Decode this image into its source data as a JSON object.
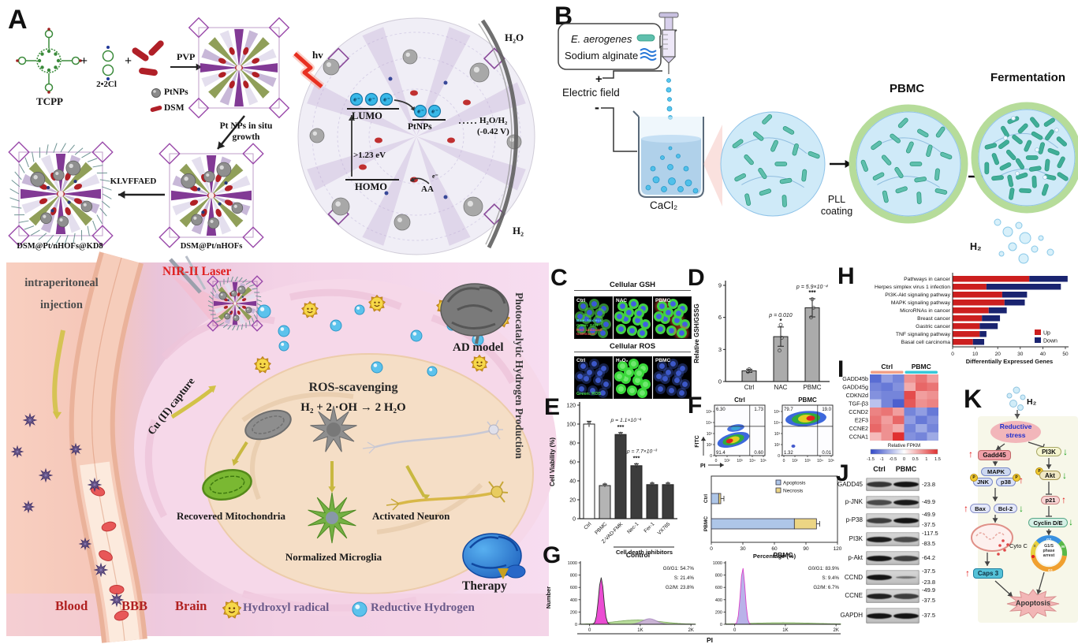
{
  "panelA": {
    "label": "A",
    "synthesis": {
      "tcpp": "TCPP",
      "plus": "+",
      "ligand": "2•2Cl",
      "pvp": "PVP",
      "legend_ptnps": "PtNPs",
      "legend_dsm": "DSM",
      "step_growth": "Pt NPs in situ growth",
      "step_peptide": "KLVFFAED",
      "product_mid": "DSM@Pt/nHOFs",
      "product_final": "DSM@Pt/nHOFs@KD8"
    },
    "photocatalysis": {
      "hv": "hv",
      "lumo": "LUMO",
      "homo": "HOMO",
      "bandgap": ">1.23 eV",
      "ptnps": "PtNPs",
      "aa": "AA",
      "electron": "e⁻",
      "h2o": "H₂O",
      "redox_couple": "H₂O/H₂",
      "redox_potential": "(-0.42 V)",
      "h2": "H₂"
    },
    "invivo": {
      "injection_line1": "intraperitoneal",
      "injection_line2": "injection",
      "laser": "NIR-II Laser",
      "cu_capture": "Cu (II) capture",
      "ros_title": "ROS-scavenging",
      "ros_equation": "H₂ + 2 ·OH → 2 H₂O",
      "ad_model": "AD model",
      "mitochondria": "Recovered Mitochondria",
      "microglia": "Normalized Microglia",
      "neuron": "Activated Neuron",
      "vertical_label": "Photocatalytic Hydrogen Production",
      "therapy": "Therapy",
      "blood": "Blood",
      "bbb": "BBB",
      "brain": "Brain",
      "legend_radical": "Hydroxyl radical",
      "legend_hydrogen": "Reductive Hydrogen"
    }
  },
  "panelB": {
    "label": "B",
    "bacteria": "E. aerogenes",
    "alginate": "Sodium alginate",
    "electric_field": "Electric field",
    "plus": "+",
    "minus": "-",
    "cacl2": "CaCl₂",
    "pll_coating": "PLL coating",
    "pbmc": "PBMC",
    "fermentation": "Fermentation",
    "h2": "H₂"
  },
  "panelC": {
    "label": "C",
    "gsh_title": "Cellular GSH",
    "gsh_columns": [
      "Ctrl",
      "NAC",
      "PBMC"
    ],
    "gsh_notes": [
      "Blue: Nucleus",
      "Green: GSH",
      "Red: unbound GSHtracer"
    ],
    "ros_title": "Cellular ROS",
    "ros_columns": [
      "Ctrl",
      "H₂O₂",
      "PBMC"
    ],
    "ros_notes": [
      "Green: ROS"
    ]
  },
  "panelD": {
    "label": "D"
  },
  "panelE": {
    "label": "E"
  },
  "panelF": {
    "label": "F"
  },
  "panelG": {
    "label": "G"
  },
  "panelH": {
    "label": "H"
  },
  "panelI": {
    "label": "I"
  },
  "panelJ": {
    "label": "J",
    "lanes": [
      "Ctrl",
      "PBMC"
    ],
    "rows": [
      {
        "protein": "GADD45",
        "mw": [
          "23.8"
        ],
        "intensity": [
          0.75,
          1.0
        ]
      },
      {
        "protein": "p-JNK",
        "mw": [
          "49.9"
        ],
        "intensity": [
          0.6,
          0.95
        ]
      },
      {
        "protein": "p-P38",
        "mw": [
          "49.9",
          "37.5"
        ],
        "intensity": [
          0.7,
          1.0
        ]
      },
      {
        "protein": "PI3K",
        "mw": [
          "117.5",
          "83.5"
        ],
        "intensity": [
          0.95,
          0.6
        ]
      },
      {
        "protein": "p-Akt",
        "mw": [
          "64.2"
        ],
        "intensity": [
          1.0,
          0.7
        ]
      },
      {
        "protein": "CCND",
        "mw": [
          "37.5",
          "23.8"
        ],
        "intensity": [
          1.0,
          0.35
        ]
      },
      {
        "protein": "CCNE",
        "mw": [
          "49.9",
          "37.5"
        ],
        "intensity": [
          0.9,
          0.7
        ]
      },
      {
        "protein": "GAPDH",
        "mw": [
          "37.5"
        ],
        "intensity": [
          1.0,
          1.0
        ]
      }
    ]
  },
  "panelK": {
    "label": "K",
    "h2": "H₂",
    "stress": "Reductive stress",
    "gadd45": "Gadd45",
    "mapk": "MAPK",
    "jnk": "JNK",
    "p38": "p38",
    "phospho": "P",
    "bax": "Bax",
    "bcl2": "Bcl-2",
    "cytoc": "Cyto C",
    "casp3": "Caps 3",
    "pi3k": "PI3K",
    "akt": "Akt",
    "p21": "p21",
    "cyclin": "Cyclin D/E",
    "arrest": [
      "G1/S",
      "phase",
      "arrest"
    ],
    "ring": [
      "G2",
      "M",
      "G1",
      "S"
    ],
    "apoptosis": "Apoptosis",
    "up": "↑",
    "down": "↓"
  },
  "chart_data": [
    {
      "id": "D",
      "type": "bar",
      "categories": [
        "Ctrl",
        "NAC",
        "PBMC"
      ],
      "values": [
        1.0,
        4.2,
        6.9
      ],
      "errors": [
        0.15,
        0.9,
        0.85
      ],
      "points": [
        [
          0.9,
          1.0,
          1.15
        ],
        [
          2.9,
          4.1,
          5.3
        ],
        [
          6.0,
          6.9,
          7.7
        ]
      ],
      "ylabel": "Relative GSH/GSSG",
      "ylim": [
        0,
        9
      ],
      "yticks": [
        0,
        3,
        6,
        9
      ],
      "annotations": [
        {
          "index": 1,
          "text": "p = 0.010",
          "stars": "*"
        },
        {
          "index": 2,
          "text": "p = 5.9×10⁻⁴",
          "stars": "***"
        }
      ]
    },
    {
      "id": "E",
      "type": "bar",
      "categories": [
        "Ctrl",
        "PBMC",
        "Z-VAD-FMK",
        "Nec-1",
        "Fer-1",
        "VX765"
      ],
      "values": [
        100,
        35,
        89,
        56,
        36,
        36
      ],
      "errors": [
        3,
        1.5,
        2,
        2,
        1.5,
        1.5
      ],
      "bar_colors": [
        "#ffffff",
        "#b4b4b4",
        "#3c3c3c",
        "#3c3c3c",
        "#3c3c3c",
        "#3c3c3c"
      ],
      "ylabel": "Cell Viability (%)",
      "ylim": [
        0,
        120
      ],
      "yticks": [
        0,
        20,
        40,
        60,
        80,
        100,
        120
      ],
      "xlabel_group": "Cell death inhibitors",
      "annotations": [
        {
          "index": 2,
          "text": "p = 1.1×10⁻⁴",
          "stars": "***"
        },
        {
          "index": 3,
          "text": "p = 7.7×10⁻³",
          "stars": "***"
        }
      ]
    },
    {
      "id": "F_flow",
      "type": "flow-density",
      "xlabel": "PI",
      "ylabel": "FITC",
      "ticks": [
        "0",
        "10²",
        "10³",
        "10⁴",
        "10⁵"
      ],
      "plots": [
        {
          "title": "Ctrl",
          "ul": "6.30",
          "ur": "1.73",
          "ll": "91.4",
          "lr": "0.60"
        },
        {
          "title": "PBMC",
          "ul": "79.7",
          "ur": "19.0",
          "ll": "1.32",
          "lr": "0.01"
        }
      ]
    },
    {
      "id": "F_bar",
      "type": "stacked-bar-h",
      "categories": [
        "Ctrl",
        "PBMC"
      ],
      "series": [
        {
          "name": "Apoptosis",
          "color": "#aec6e8",
          "values": [
            7,
            79
          ]
        },
        {
          "name": "Necrosis",
          "color": "#ecd584",
          "values": [
            2,
            21
          ]
        }
      ],
      "xlabel": "Percentage (%)",
      "xlim": [
        0,
        120
      ],
      "xticks": [
        0,
        30,
        60,
        90,
        120
      ]
    },
    {
      "id": "G",
      "type": "histogram",
      "xlabel": "PI",
      "ylabel": "Number",
      "yticks": [
        0,
        200,
        400,
        600,
        800,
        1000
      ],
      "xticks": [
        "0",
        "1K",
        "2K"
      ],
      "plots": [
        {
          "title": "Control",
          "stats": [
            "G0/G1: 54.7%",
            "S: 21.4%",
            "G2/M: 23.8%"
          ]
        },
        {
          "title": "PBMC",
          "stats": [
            "G0/G1: 83.9%",
            "S: 9.4%",
            "G2/M: 6.7%"
          ]
        }
      ]
    },
    {
      "id": "H",
      "type": "stacked-bar-h",
      "categories": [
        "Pathways in cancer",
        "Herpes simplex virus 1 infection",
        "PI3K-Akt signaling pathway",
        "MAPK signaling pathway",
        "MicroRNAs in cancer",
        "Breast cancer",
        "Gastric cancer",
        "TNF signaling pathway",
        "Basal cell carcinoma"
      ],
      "series": [
        {
          "name": "Up",
          "color": "#cc1f1f",
          "values": [
            34,
            15,
            22,
            23,
            16,
            13,
            12,
            12,
            9
          ]
        },
        {
          "name": "Down",
          "color": "#1a2470",
          "values": [
            17,
            33,
            11,
            9,
            8,
            8,
            8,
            3,
            5
          ]
        }
      ],
      "xlabel": "Differentially Expressed Genes",
      "xlim": [
        0,
        50
      ],
      "xticks": [
        0,
        10,
        20,
        30,
        40,
        50
      ]
    },
    {
      "id": "I",
      "type": "heatmap",
      "col_groups": [
        {
          "name": "Ctrl",
          "color": "#f2a088",
          "cols": 3
        },
        {
          "name": "PBMC",
          "color": "#38c8d8",
          "cols": 3
        }
      ],
      "rows": [
        "GADD45b",
        "GADD45g",
        "CDKN2d",
        "TGF-β3",
        "CCND2",
        "E2F3",
        "CCNE2",
        "CCNA1"
      ],
      "values": [
        [
          -1.2,
          -0.8,
          -1.0,
          0.8,
          1.0,
          0.7
        ],
        [
          -1.0,
          -1.1,
          -0.9,
          0.6,
          1.1,
          1.0
        ],
        [
          -0.9,
          -1.0,
          -1.0,
          1.3,
          0.7,
          0.8
        ],
        [
          -0.5,
          -1.0,
          -1.3,
          1.2,
          0.8,
          0.9
        ],
        [
          0.9,
          1.0,
          0.7,
          -1.0,
          -0.8,
          -1.1
        ],
        [
          1.0,
          0.7,
          1.1,
          -0.8,
          -1.1,
          -0.9
        ],
        [
          1.1,
          0.8,
          0.6,
          -1.0,
          -0.7,
          -1.0
        ],
        [
          0.5,
          0.8,
          1.5,
          -0.9,
          -1.0,
          -0.7
        ]
      ],
      "colorbar_label": "Relative FPKM",
      "colorbar_ticks": [
        "-1.5",
        "-1",
        "-0.5",
        "0",
        "0.5",
        "1",
        "1.5"
      ],
      "vmin": -1.5,
      "vmax": 1.5
    }
  ]
}
